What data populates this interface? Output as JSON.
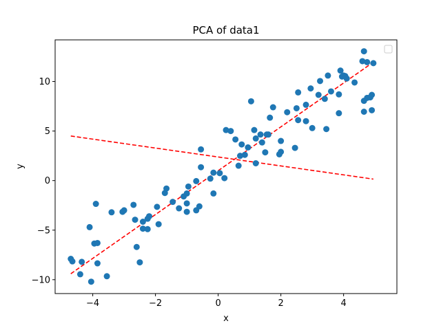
{
  "chart_data": {
    "type": "scatter",
    "title": "PCA of data1",
    "xlabel": "x",
    "ylabel": "y",
    "xlim": [
      -5.2,
      5.7
    ],
    "ylim": [
      -11.4,
      14.2
    ],
    "x_ticks": [
      -4,
      -2,
      0,
      2,
      4
    ],
    "y_ticks": [
      -10,
      -5,
      0,
      5,
      10
    ],
    "legend": {
      "placement": "top-right",
      "entries": []
    },
    "grid": false,
    "colors": {
      "points": "#1f77b4",
      "lines": "#ff0000"
    },
    "scatter_points": [
      [
        -4.7,
        -7.9
      ],
      [
        -4.65,
        -8.15
      ],
      [
        -4.4,
        -9.45
      ],
      [
        -4.35,
        -8.2
      ],
      [
        -4.1,
        -4.7
      ],
      [
        -4.05,
        -10.2
      ],
      [
        -3.95,
        -6.35
      ],
      [
        -3.9,
        -2.35
      ],
      [
        -3.85,
        -6.3
      ],
      [
        -3.85,
        -8.35
      ],
      [
        -3.55,
        -9.65
      ],
      [
        -3.4,
        -3.2
      ],
      [
        -3.05,
        -3.15
      ],
      [
        -3.0,
        -3.0
      ],
      [
        -2.7,
        -2.45
      ],
      [
        -2.65,
        -3.95
      ],
      [
        -2.6,
        -6.7
      ],
      [
        -2.5,
        -8.25
      ],
      [
        -2.4,
        -4.15
      ],
      [
        -2.4,
        -4.85
      ],
      [
        -2.25,
        -4.9
      ],
      [
        -2.25,
        -3.85
      ],
      [
        -2.2,
        -3.6
      ],
      [
        -1.95,
        -2.65
      ],
      [
        -1.9,
        -4.4
      ],
      [
        -1.7,
        -1.25
      ],
      [
        -1.65,
        -0.8
      ],
      [
        -1.45,
        -2.15
      ],
      [
        -1.25,
        -2.8
      ],
      [
        -1.1,
        -1.6
      ],
      [
        -1.0,
        -1.3
      ],
      [
        -1.0,
        -2.3
      ],
      [
        -1.0,
        -3.15
      ],
      [
        -0.95,
        -0.6
      ],
      [
        -0.7,
        -3.0
      ],
      [
        -0.7,
        -0.05
      ],
      [
        -0.6,
        -2.6
      ],
      [
        -0.55,
        1.35
      ],
      [
        -0.55,
        3.15
      ],
      [
        -0.25,
        0.2
      ],
      [
        -0.15,
        -1.3
      ],
      [
        -0.15,
        0.8
      ],
      [
        0.05,
        0.75
      ],
      [
        0.2,
        0.25
      ],
      [
        0.25,
        5.1
      ],
      [
        0.4,
        5.0
      ],
      [
        0.55,
        4.15
      ],
      [
        0.65,
        1.5
      ],
      [
        0.7,
        2.5
      ],
      [
        0.75,
        3.65
      ],
      [
        0.85,
        2.6
      ],
      [
        0.95,
        3.35
      ],
      [
        1.05,
        8.0
      ],
      [
        1.15,
        5.1
      ],
      [
        1.2,
        4.25
      ],
      [
        1.2,
        1.75
      ],
      [
        1.35,
        4.65
      ],
      [
        1.4,
        3.85
      ],
      [
        1.5,
        2.85
      ],
      [
        1.55,
        4.65
      ],
      [
        1.6,
        4.65
      ],
      [
        1.65,
        6.35
      ],
      [
        1.75,
        7.4
      ],
      [
        1.95,
        2.65
      ],
      [
        2.0,
        2.9
      ],
      [
        2.0,
        4.0
      ],
      [
        2.2,
        6.9
      ],
      [
        2.45,
        3.3
      ],
      [
        2.5,
        7.3
      ],
      [
        2.55,
        8.9
      ],
      [
        2.55,
        6.1
      ],
      [
        2.8,
        6.0
      ],
      [
        2.8,
        7.65
      ],
      [
        2.95,
        9.3
      ],
      [
        3.0,
        5.3
      ],
      [
        3.2,
        8.65
      ],
      [
        3.25,
        10.05
      ],
      [
        3.4,
        8.25
      ],
      [
        3.45,
        5.2
      ],
      [
        3.5,
        10.6
      ],
      [
        3.6,
        9.0
      ],
      [
        3.85,
        6.8
      ],
      [
        3.85,
        8.7
      ],
      [
        3.9,
        11.1
      ],
      [
        3.95,
        10.5
      ],
      [
        4.0,
        10.6
      ],
      [
        4.05,
        10.55
      ],
      [
        4.1,
        10.3
      ],
      [
        4.35,
        9.9
      ],
      [
        4.6,
        12.05
      ],
      [
        4.65,
        13.05
      ],
      [
        4.65,
        8.05
      ],
      [
        4.65,
        6.95
      ],
      [
        4.75,
        8.35
      ],
      [
        4.75,
        11.95
      ],
      [
        4.85,
        8.4
      ],
      [
        4.9,
        8.65
      ],
      [
        4.9,
        7.1
      ],
      [
        4.95,
        11.85
      ]
    ],
    "pca_lines": [
      {
        "x": [
          -4.7,
          4.95
        ],
        "y": [
          -9.4,
          11.95
        ]
      },
      {
        "x": [
          -4.7,
          4.95
        ],
        "y": [
          4.5,
          0.15
        ]
      }
    ]
  }
}
